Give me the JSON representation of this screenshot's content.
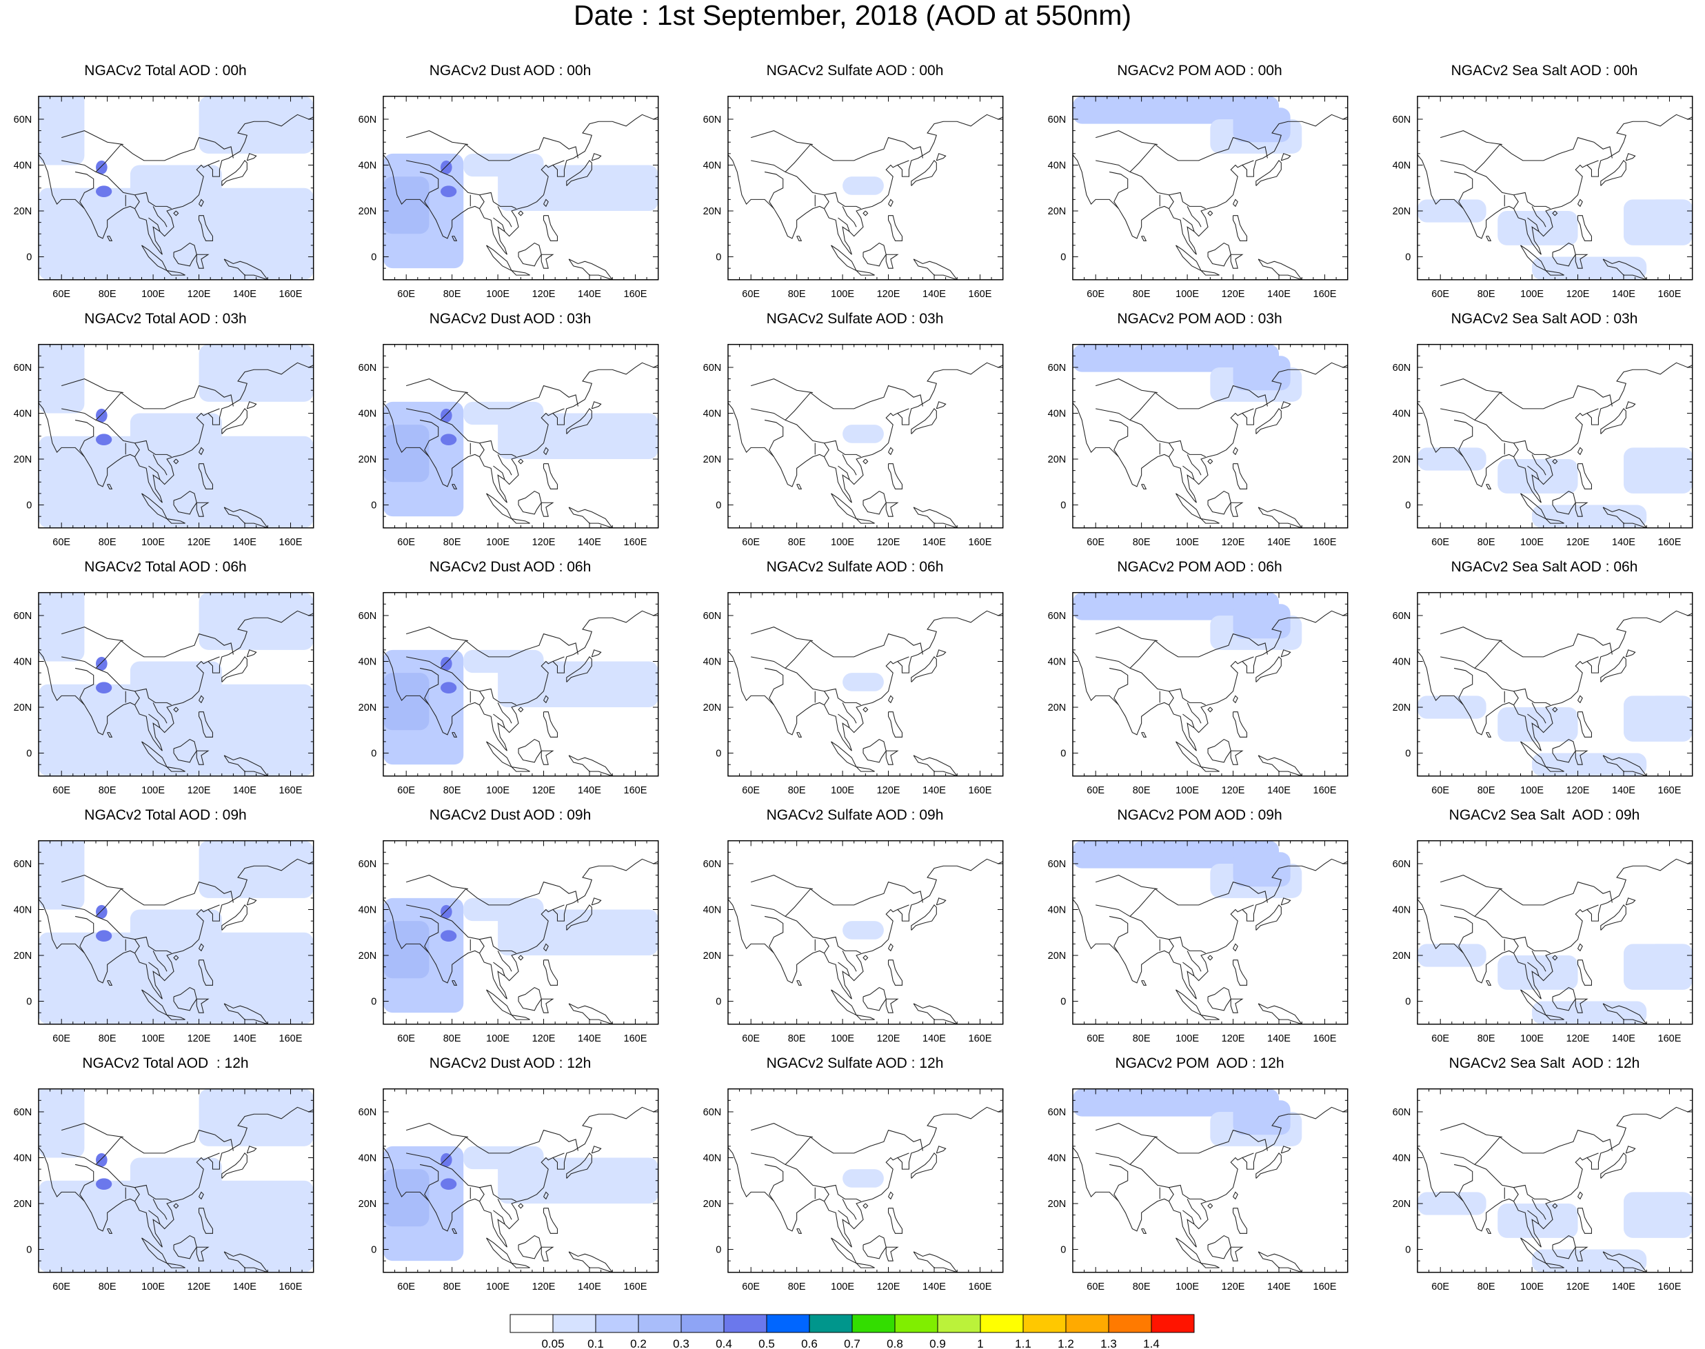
{
  "title": "Date : 1st September, 2018 (AOD at 550nm)",
  "map_axes": {
    "x_ticks": [
      "60E",
      "80E",
      "100E",
      "120E",
      "140E",
      "160E"
    ],
    "y_ticks": [
      "60N",
      "40N",
      "20N",
      "0"
    ]
  },
  "panels": [
    [
      "NGACv2 Total AOD : 00h",
      "NGACv2 Dust AOD : 00h",
      "NGACv2 Sulfate AOD : 00h",
      "NGACv2 POM AOD : 00h",
      "NGACv2 Sea Salt AOD : 00h"
    ],
    [
      "NGACv2 Total AOD : 03h",
      "NGACv2 Dust AOD : 03h",
      "NGACv2 Sulfate AOD : 03h",
      "NGACv2 POM AOD : 03h",
      "NGACv2 Sea Salt AOD : 03h"
    ],
    [
      "NGACv2 Total AOD : 06h",
      "NGACv2 Dust AOD : 06h",
      "NGACv2 Sulfate AOD : 06h",
      "NGACv2 POM AOD : 06h",
      "NGACv2 Sea Salt AOD : 06h"
    ],
    [
      "NGACv2 Total AOD : 09h",
      "NGACv2 Dust AOD : 09h",
      "NGACv2 Sulfate AOD : 09h",
      "NGACv2 POM AOD : 09h",
      "NGACv2 Sea Salt  AOD : 09h"
    ],
    [
      "NGACv2 Total AOD  : 12h",
      "NGACv2 Dust AOD : 12h",
      "NGACv2 Sulfate AOD : 12h",
      "NGACv2 POM  AOD : 12h",
      "NGACv2 Sea Salt  AOD : 12h"
    ]
  ],
  "colorbar": {
    "labels": [
      "0.05",
      "0.1",
      "0.2",
      "0.3",
      "0.4",
      "0.5",
      "0.6",
      "0.7",
      "0.8",
      "0.9",
      "1",
      "1.1",
      "1.2",
      "1.3",
      "1.4"
    ],
    "colors": [
      "#ffffff",
      "#d6e2ff",
      "#bccdff",
      "#a9bdfa",
      "#8ea4f5",
      "#6b78ec",
      "#0066ff",
      "#00968c",
      "#33dd00",
      "#80ee00",
      "#bbf23a",
      "#ffff00",
      "#ffc800",
      "#ffaa00",
      "#ff7a00",
      "#ff1400"
    ]
  }
}
